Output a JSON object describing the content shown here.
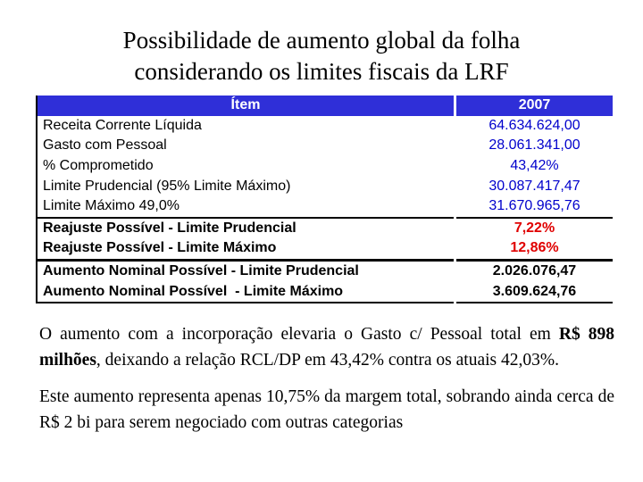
{
  "title": {
    "lines": [
      "Possibilidade de aumento global da folha",
      "considerando os limites fiscais da LRF"
    ]
  },
  "table": {
    "header": [
      "Ítem",
      "2007"
    ],
    "rows": [
      {
        "cells": [
          "Receita Corrente Líquida",
          "64.634.624,00"
        ],
        "style": "normal"
      },
      {
        "cells": [
          "Gasto com Pessoal",
          "28.061.341,00"
        ],
        "style": "normal"
      },
      {
        "cells": [
          "% Comprometido",
          "43,42%"
        ],
        "style": "normal"
      },
      {
        "cells": [
          "Limite Prudencial (95% Limite Máximo)",
          "30.087.417,47"
        ],
        "style": "normal"
      },
      {
        "cells": [
          "Limite Máximo 49,0%",
          "31.670.965,76"
        ],
        "style": "normal"
      },
      {
        "cells": [
          "Reajuste Possível - Limite Prudencial",
          "7,22%"
        ],
        "style": "highlight"
      },
      {
        "cells": [
          "Reajuste Possível - Limite Máximo",
          "12,86%"
        ],
        "style": "highlight"
      },
      {
        "cells": [
          "Aumento Nominal Possível - Limite Prudencial",
          "2.026.076,47"
        ],
        "style": "total"
      },
      {
        "cells": [
          "Aumento Nominal Possível  - Limite Máximo",
          "3.609.624,76"
        ],
        "style": "total"
      }
    ]
  },
  "paragraphs": [
    [
      {
        "text": "O aumento com a incorporação elevaria o Gasto c/ Pessoal total em "
      },
      {
        "text": "R$ 898 milhões",
        "bold": true
      },
      {
        "text": ", deixando a relação RCL/DP em 43,42% contra os atuais 42,03%."
      }
    ],
    [
      {
        "text": "Este aumento representa apenas 10,75% da margem total, sobrando ainda cerca de R$ 2 bi para serem negociado com outras categorias"
      }
    ]
  ]
}
